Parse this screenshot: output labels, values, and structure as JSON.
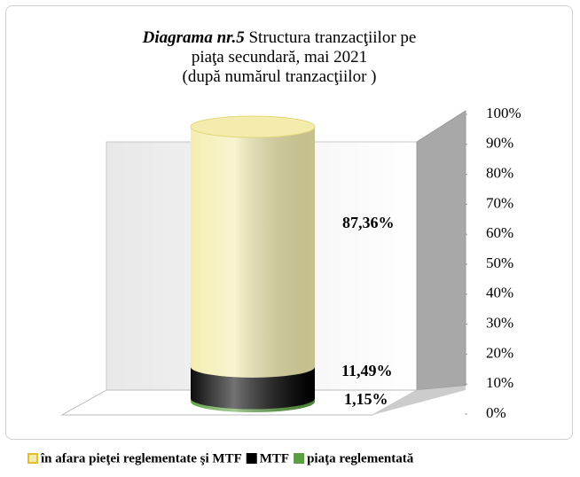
{
  "chart_data": {
    "type": "stacked-bar-3d-cylinder",
    "title_label": "Diagrama nr.5",
    "title": "Structura tranzacţiilor pe piaţa secundară,  mai 2021",
    "subtitle": "(după numărul tranzacţiilor )",
    "categories": [
      null
    ],
    "series": [
      {
        "name": "în afara pieţei reglementate  şi MTF",
        "color": "#f3ecac",
        "values": [
          87.36
        ],
        "value_labels": [
          "87,36%"
        ]
      },
      {
        "name": "MTF",
        "color": "#000000",
        "values": [
          11.49
        ],
        "value_labels": [
          "11,49%"
        ]
      },
      {
        "name": "piaţa reglementată",
        "color": "#5aa040",
        "values": [
          1.15
        ],
        "value_labels": [
          "1,15%"
        ]
      }
    ],
    "ylim": [
      0,
      100
    ],
    "yticks": [
      {
        "value": 0,
        "label": "0%"
      },
      {
        "value": 10,
        "label": "10%"
      },
      {
        "value": 20,
        "label": "20%"
      },
      {
        "value": 30,
        "label": "30%"
      },
      {
        "value": 40,
        "label": "40%"
      },
      {
        "value": 50,
        "label": "50%"
      },
      {
        "value": 60,
        "label": "60%"
      },
      {
        "value": 70,
        "label": "70%"
      },
      {
        "value": 80,
        "label": "80%"
      },
      {
        "value": 90,
        "label": "90%"
      },
      {
        "value": 100,
        "label": "100%"
      }
    ],
    "legend": "bottom"
  }
}
